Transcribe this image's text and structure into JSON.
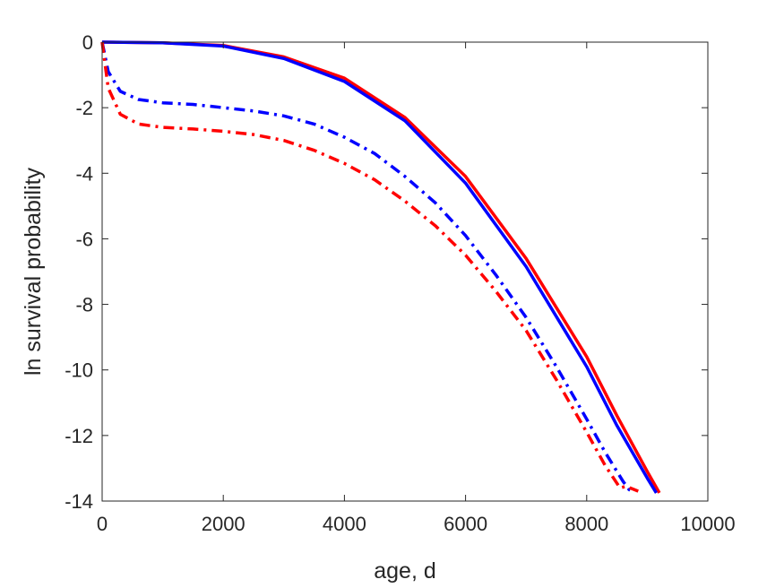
{
  "chart_data": {
    "type": "line",
    "title": "",
    "xlabel": "age, d",
    "ylabel": "ln survival probability",
    "xlim": [
      0,
      10000
    ],
    "ylim": [
      -14,
      0
    ],
    "xticks": [
      0,
      2000,
      4000,
      6000,
      8000,
      10000
    ],
    "yticks": [
      0,
      -2,
      -4,
      -6,
      -8,
      -10,
      -12,
      -14
    ],
    "xtick_labels": [
      "0",
      "2000",
      "4000",
      "6000",
      "8000",
      "10000"
    ],
    "ytick_labels": [
      "0",
      "-2",
      "-4",
      "-6",
      "-8",
      "-10",
      "-12",
      "-14"
    ],
    "grid": false,
    "box": true,
    "series": [
      {
        "color": "#ff0000",
        "style": "solid",
        "x": [
          0,
          1000,
          2000,
          3000,
          4000,
          5000,
          6000,
          7000,
          8000,
          8500,
          9000,
          9200
        ],
        "y": [
          0,
          -0.02,
          -0.1,
          -0.45,
          -1.1,
          -2.3,
          -4.1,
          -6.6,
          -9.6,
          -11.4,
          -13.1,
          -13.75
        ]
      },
      {
        "color": "#0000ff",
        "style": "solid",
        "x": [
          0,
          1000,
          2000,
          3000,
          4000,
          5000,
          6000,
          7000,
          8000,
          8500,
          9000,
          9150
        ],
        "y": [
          0,
          -0.02,
          -0.12,
          -0.5,
          -1.2,
          -2.4,
          -4.3,
          -6.85,
          -9.9,
          -11.7,
          -13.3,
          -13.75
        ]
      },
      {
        "color": "#0000ff",
        "style": "dashdot",
        "x": [
          0,
          100,
          300,
          600,
          1000,
          1500,
          2000,
          2500,
          3000,
          3500,
          4000,
          4500,
          5000,
          5500,
          6000,
          6500,
          7000,
          7500,
          8000,
          8300,
          8600,
          8700,
          8750
        ],
        "y": [
          0,
          -0.9,
          -1.5,
          -1.75,
          -1.85,
          -1.9,
          -2.0,
          -2.1,
          -2.25,
          -2.5,
          -2.9,
          -3.4,
          -4.1,
          -4.9,
          -5.9,
          -7.1,
          -8.4,
          -9.9,
          -11.5,
          -12.5,
          -13.4,
          -13.65,
          -13.7
        ]
      },
      {
        "color": "#ff0000",
        "style": "dashdot",
        "x": [
          0,
          100,
          300,
          600,
          1000,
          1500,
          2000,
          2500,
          3000,
          3500,
          4000,
          4500,
          5000,
          5500,
          6000,
          6500,
          7000,
          7500,
          8000,
          8300,
          8550,
          8650,
          8850
        ],
        "y": [
          0,
          -1.4,
          -2.2,
          -2.5,
          -2.6,
          -2.65,
          -2.72,
          -2.82,
          -3.0,
          -3.3,
          -3.7,
          -4.2,
          -4.85,
          -5.6,
          -6.5,
          -7.6,
          -8.8,
          -10.3,
          -11.9,
          -12.9,
          -13.6,
          -13.55,
          -13.7
        ]
      }
    ]
  }
}
